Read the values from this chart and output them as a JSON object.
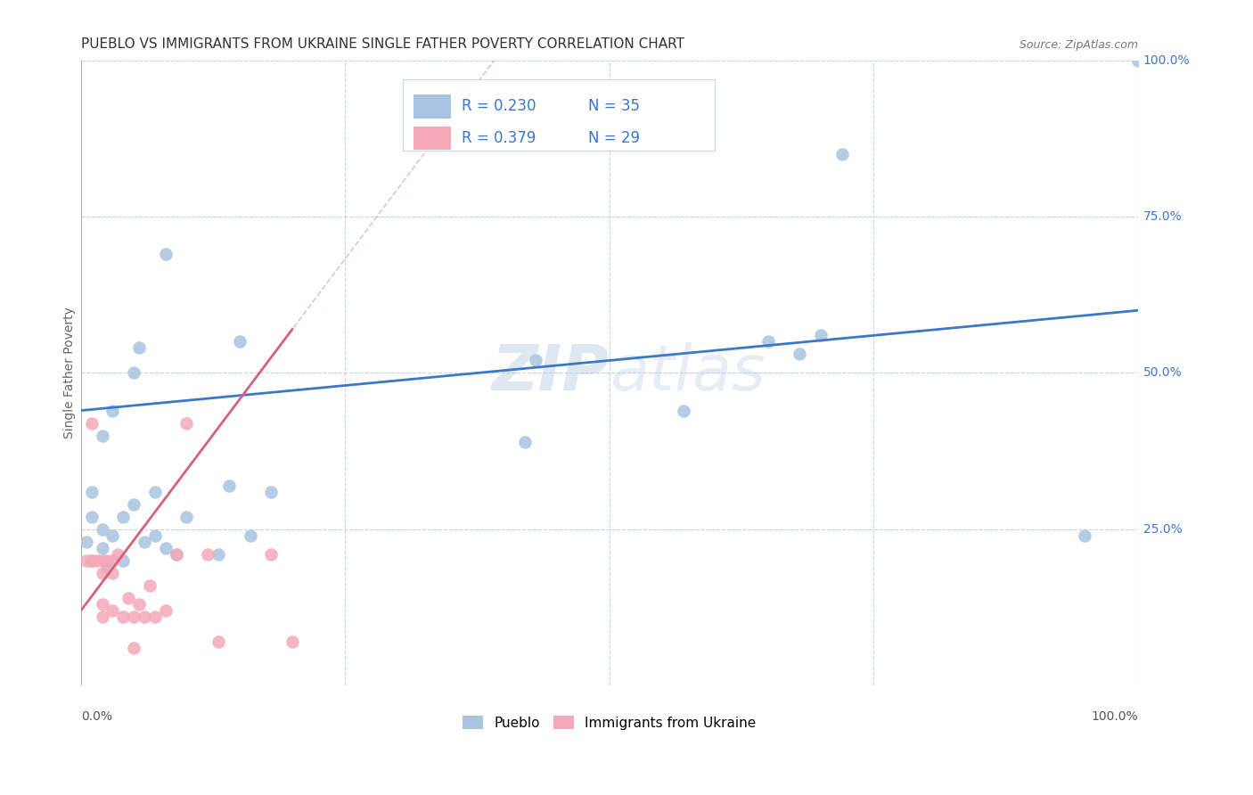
{
  "title": "PUEBLO VS IMMIGRANTS FROM UKRAINE SINGLE FATHER POVERTY CORRELATION CHART",
  "source": "Source: ZipAtlas.com",
  "ylabel": "Single Father Poverty",
  "watermark": "ZIPatlas",
  "xlim": [
    0,
    1.0
  ],
  "ylim": [
    0,
    1.0
  ],
  "pueblo_color": "#a8c4e0",
  "ukraine_color": "#f4a8b8",
  "pueblo_line_color": "#3c78c8",
  "ukraine_line_color": "#d9607a",
  "grid_color": "#c8d4e8",
  "legend_R_pueblo": "R = 0.230",
  "legend_N_pueblo": "N = 35",
  "legend_R_ukraine": "R = 0.379",
  "legend_N_ukraine": "N = 29",
  "pueblo_x": [
    0.005,
    0.01,
    0.01,
    0.02,
    0.02,
    0.02,
    0.025,
    0.03,
    0.03,
    0.04,
    0.04,
    0.05,
    0.05,
    0.055,
    0.06,
    0.07,
    0.07,
    0.08,
    0.08,
    0.09,
    0.1,
    0.13,
    0.14,
    0.15,
    0.16,
    0.18,
    0.42,
    0.43,
    0.57,
    0.65,
    0.68,
    0.7,
    0.72,
    0.95,
    1.0
  ],
  "pueblo_y": [
    0.23,
    0.27,
    0.31,
    0.22,
    0.25,
    0.4,
    0.19,
    0.24,
    0.44,
    0.2,
    0.27,
    0.29,
    0.5,
    0.54,
    0.23,
    0.24,
    0.31,
    0.22,
    0.69,
    0.21,
    0.27,
    0.21,
    0.32,
    0.55,
    0.24,
    0.31,
    0.39,
    0.52,
    0.44,
    0.55,
    0.53,
    0.56,
    0.85,
    0.24,
    1.0
  ],
  "ukraine_x": [
    0.005,
    0.01,
    0.01,
    0.01,
    0.015,
    0.02,
    0.02,
    0.02,
    0.02,
    0.025,
    0.03,
    0.03,
    0.03,
    0.035,
    0.04,
    0.045,
    0.05,
    0.05,
    0.055,
    0.06,
    0.065,
    0.07,
    0.08,
    0.09,
    0.1,
    0.12,
    0.13,
    0.18,
    0.2
  ],
  "ukraine_y": [
    0.2,
    0.2,
    0.2,
    0.42,
    0.2,
    0.11,
    0.13,
    0.18,
    0.2,
    0.2,
    0.12,
    0.18,
    0.2,
    0.21,
    0.11,
    0.14,
    0.06,
    0.11,
    0.13,
    0.11,
    0.16,
    0.11,
    0.12,
    0.21,
    0.42,
    0.21,
    0.07,
    0.21,
    0.07
  ],
  "background_color": "#ffffff",
  "title_fontsize": 11,
  "label_fontsize": 10,
  "tick_fontsize": 10
}
